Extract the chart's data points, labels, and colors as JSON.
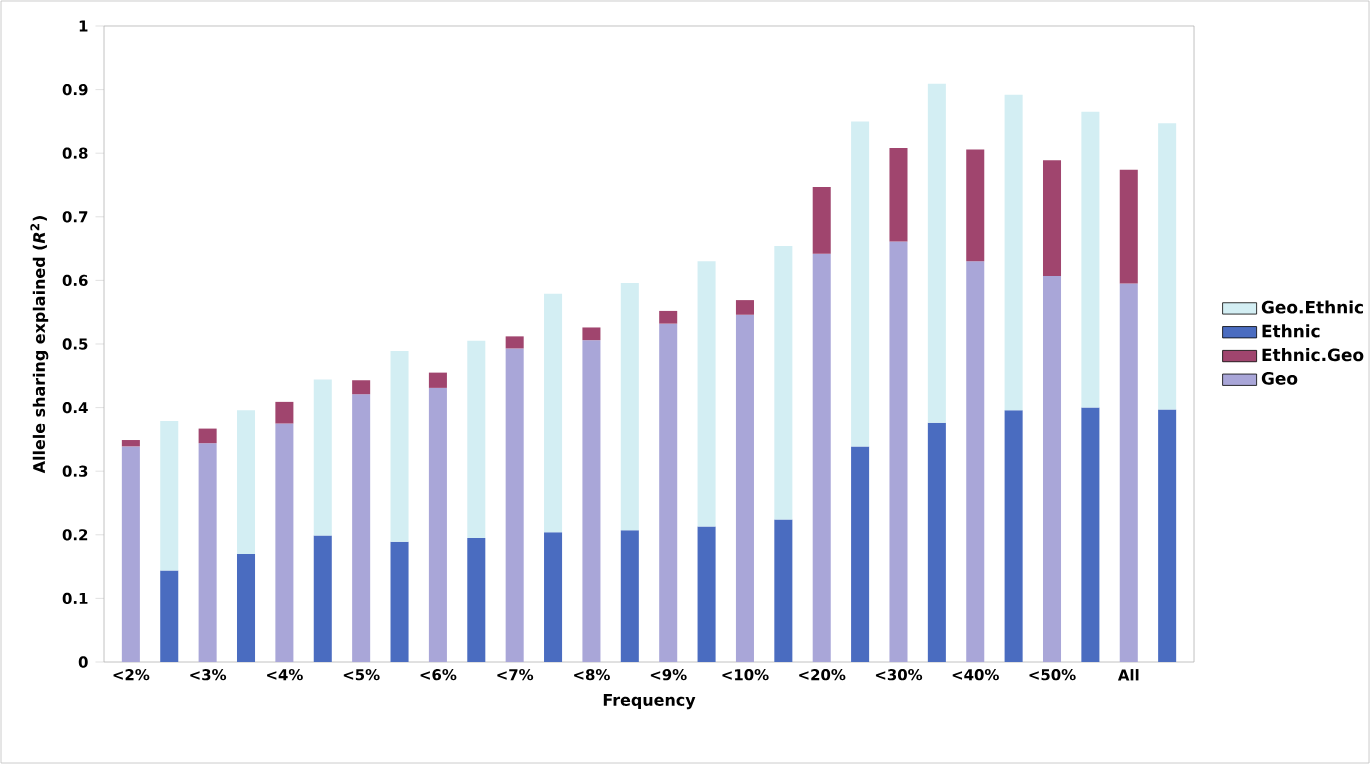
{
  "chart_data": {
    "type": "bar",
    "stacked": true,
    "xlabel": "Frequency",
    "ylabel": "Allele sharing explained (*R*$^{2}$)",
    "categories": [
      "<2%",
      null,
      "<3%",
      null,
      "<4%",
      null,
      "<5%",
      null,
      "<6%",
      null,
      "<7%",
      null,
      "<8%",
      null,
      "<9%",
      null,
      "<10%",
      null,
      "<20%",
      null,
      "<30%",
      null,
      "<40%",
      null,
      "<50%",
      null,
      "All",
      null
    ],
    "series": [
      {
        "name": "Geo",
        "color": "#a9a6d8",
        "values": [
          0.339,
          null,
          0.344,
          null,
          0.375,
          null,
          0.421,
          null,
          0.431,
          null,
          0.493,
          null,
          0.506,
          null,
          0.532,
          null,
          0.546,
          null,
          0.642,
          null,
          0.661,
          null,
          0.63,
          null,
          0.607,
          null,
          0.595,
          null
        ]
      },
      {
        "name": "Ethnic.Geo",
        "color": "#a0456e",
        "values": [
          0.01,
          null,
          0.023,
          null,
          0.034,
          null,
          0.022,
          null,
          0.024,
          null,
          0.019,
          null,
          0.02,
          null,
          0.02,
          null,
          0.023,
          null,
          0.105,
          null,
          0.147,
          null,
          0.176,
          null,
          0.182,
          null,
          0.179,
          null
        ]
      },
      {
        "name": "Ethnic",
        "color": "#4a6cc0",
        "values": [
          null,
          0.144,
          null,
          0.17,
          null,
          0.199,
          null,
          0.189,
          null,
          0.195,
          null,
          0.204,
          null,
          0.207,
          null,
          0.213,
          null,
          0.224,
          null,
          0.339,
          null,
          0.376,
          null,
          0.396,
          null,
          0.4,
          null,
          0.397
        ]
      },
      {
        "name": "Geo.Ethnic",
        "color": "#d3eef3",
        "values": [
          null,
          0.235,
          null,
          0.226,
          null,
          0.245,
          null,
          0.3,
          null,
          0.31,
          null,
          0.375,
          null,
          0.389,
          null,
          0.417,
          null,
          0.43,
          null,
          0.511,
          null,
          0.533,
          null,
          0.496,
          null,
          0.465,
          null,
          0.45
        ]
      }
    ],
    "ylim": [
      0,
      1
    ],
    "yticks": [
      0,
      0.1,
      0.2,
      0.3,
      0.4,
      0.5,
      0.6,
      0.7,
      0.8,
      0.9,
      1
    ],
    "legend": "right"
  }
}
